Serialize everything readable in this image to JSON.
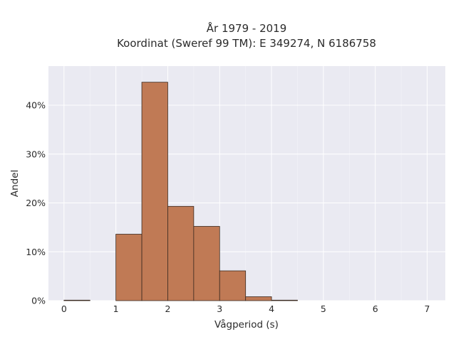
{
  "chart_data": {
    "type": "bar",
    "title": [
      "År 1979 - 2019",
      "Koordinat (Sweref 99 TM): E 349274, N 6186758"
    ],
    "xlabel": "Vågperiod (s)",
    "ylabel": "Andel",
    "xlim": [
      -0.3,
      7.35
    ],
    "ylim": [
      0,
      0.48
    ],
    "x_ticks": [
      0,
      1,
      2,
      3,
      4,
      5,
      6,
      7
    ],
    "y_ticks": [
      0,
      0.1,
      0.2,
      0.3,
      0.4
    ],
    "y_tick_labels": [
      "0%",
      "10%",
      "20%",
      "30%",
      "40%"
    ],
    "bin_width": 0.5,
    "bins": [
      {
        "start": 0.0,
        "end": 0.5,
        "value": 0.001
      },
      {
        "start": 1.0,
        "end": 1.5,
        "value": 0.136
      },
      {
        "start": 1.5,
        "end": 2.0,
        "value": 0.447
      },
      {
        "start": 2.0,
        "end": 2.5,
        "value": 0.193
      },
      {
        "start": 2.5,
        "end": 3.0,
        "value": 0.152
      },
      {
        "start": 3.0,
        "end": 3.5,
        "value": 0.061
      },
      {
        "start": 3.5,
        "end": 4.0,
        "value": 0.008
      },
      {
        "start": 4.0,
        "end": 4.5,
        "value": 0.001
      }
    ],
    "grid": true,
    "bar_color": "#c07a55",
    "bar_edge_color": "#3a2a20",
    "background_color": "#eaeaf2"
  }
}
